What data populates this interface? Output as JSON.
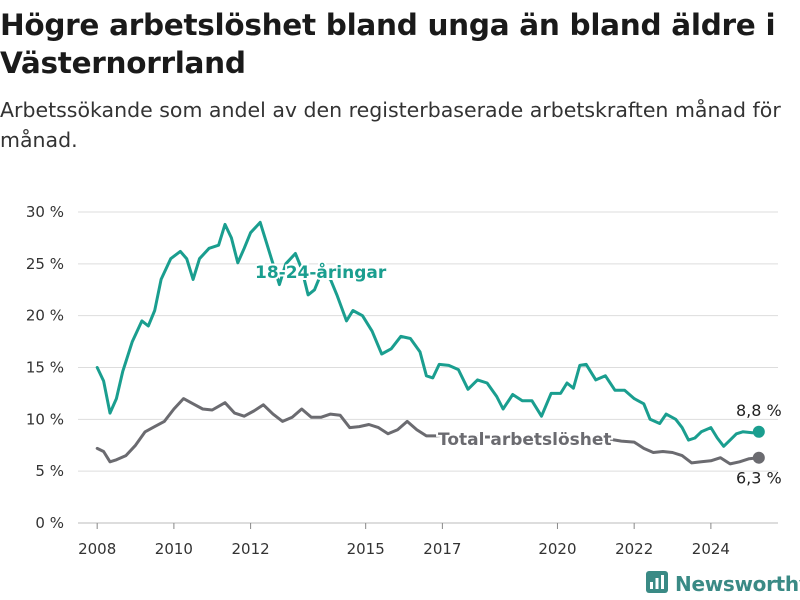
{
  "title": "Högre arbetslöshet bland unga än bland äldre i Västernorrland",
  "subtitle": "Arbetssökande som andel av den registerbaserade arbetskraften månad för månad.",
  "brand": {
    "name": "Newsworthy",
    "icon": "bar-chart-logo-icon"
  },
  "colors": {
    "youth": "#1a9e8f",
    "total": "#6b6b70",
    "grid": "#dddddd",
    "text": "#333333"
  },
  "chart_data": {
    "type": "line",
    "title": "Högre arbetslöshet bland unga än bland äldre i Västernorrland",
    "subtitle": "Arbetssökande som andel av den registerbaserade arbetskraften månad för månad.",
    "xlabel": "",
    "ylabel": "",
    "ylim": [
      0,
      30
    ],
    "xlim": [
      "2007-07",
      "2025-10"
    ],
    "yticks": [
      "0 %",
      "5 %",
      "10 %",
      "15 %",
      "20 %",
      "25 %",
      "30 %"
    ],
    "xticks": [
      "2008",
      "2010",
      "2012",
      "2015",
      "2017",
      "2020",
      "2022",
      "2024"
    ],
    "grid": true,
    "series": [
      {
        "name": "18-24-åringar",
        "color": "#1a9e8f",
        "end_label": "8,8 %",
        "points": [
          [
            "2008-01",
            15.0
          ],
          [
            "2008-03",
            13.7
          ],
          [
            "2008-05",
            10.6
          ],
          [
            "2008-07",
            12.0
          ],
          [
            "2008-09",
            14.6
          ],
          [
            "2008-12",
            17.5
          ],
          [
            "2009-03",
            19.5
          ],
          [
            "2009-05",
            19.0
          ],
          [
            "2009-07",
            20.5
          ],
          [
            "2009-09",
            23.5
          ],
          [
            "2009-12",
            25.5
          ],
          [
            "2010-03",
            26.2
          ],
          [
            "2010-05",
            25.5
          ],
          [
            "2010-07",
            23.5
          ],
          [
            "2010-09",
            25.5
          ],
          [
            "2010-12",
            26.5
          ],
          [
            "2011-03",
            26.8
          ],
          [
            "2011-05",
            28.8
          ],
          [
            "2011-07",
            27.5
          ],
          [
            "2011-09",
            25.1
          ],
          [
            "2011-11",
            26.5
          ],
          [
            "2012-01",
            28.0
          ],
          [
            "2012-04",
            29.0
          ],
          [
            "2012-06",
            27.0
          ],
          [
            "2012-08",
            25.0
          ],
          [
            "2012-10",
            23.0
          ],
          [
            "2012-12",
            25.0
          ],
          [
            "2013-03",
            26.0
          ],
          [
            "2013-05",
            24.5
          ],
          [
            "2013-07",
            22.0
          ],
          [
            "2013-09",
            22.5
          ],
          [
            "2013-11",
            24.0
          ],
          [
            "2014-02",
            23.5
          ],
          [
            "2014-04",
            22.0
          ],
          [
            "2014-07",
            19.5
          ],
          [
            "2014-09",
            20.5
          ],
          [
            "2014-12",
            20.0
          ],
          [
            "2015-03",
            18.5
          ],
          [
            "2015-06",
            16.3
          ],
          [
            "2015-09",
            16.8
          ],
          [
            "2015-12",
            18.0
          ],
          [
            "2016-03",
            17.8
          ],
          [
            "2016-06",
            16.5
          ],
          [
            "2016-08",
            14.2
          ],
          [
            "2016-10",
            14.0
          ],
          [
            "2016-12",
            15.3
          ],
          [
            "2017-03",
            15.2
          ],
          [
            "2017-06",
            14.8
          ],
          [
            "2017-09",
            12.9
          ],
          [
            "2017-12",
            13.8
          ],
          [
            "2018-03",
            13.5
          ],
          [
            "2018-06",
            12.2
          ],
          [
            "2018-08",
            11.0
          ],
          [
            "2018-11",
            12.4
          ],
          [
            "2019-02",
            11.8
          ],
          [
            "2019-05",
            11.8
          ],
          [
            "2019-08",
            10.3
          ],
          [
            "2019-11",
            12.5
          ],
          [
            "2020-02",
            12.5
          ],
          [
            "2020-04",
            13.5
          ],
          [
            "2020-06",
            13.0
          ],
          [
            "2020-08",
            15.2
          ],
          [
            "2020-10",
            15.3
          ],
          [
            "2021-01",
            13.8
          ],
          [
            "2021-04",
            14.2
          ],
          [
            "2021-07",
            12.8
          ],
          [
            "2021-10",
            12.8
          ],
          [
            "2022-01",
            12.0
          ],
          [
            "2022-04",
            11.5
          ],
          [
            "2022-06",
            10.0
          ],
          [
            "2022-09",
            9.6
          ],
          [
            "2022-11",
            10.5
          ],
          [
            "2023-02",
            10.0
          ],
          [
            "2023-04",
            9.2
          ],
          [
            "2023-06",
            8.0
          ],
          [
            "2023-08",
            8.2
          ],
          [
            "2023-10",
            8.8
          ],
          [
            "2024-01",
            9.2
          ],
          [
            "2024-03",
            8.2
          ],
          [
            "2024-05",
            7.4
          ],
          [
            "2024-07",
            8.0
          ],
          [
            "2024-09",
            8.6
          ],
          [
            "2024-11",
            8.8
          ],
          [
            "2025-02",
            8.7
          ],
          [
            "2025-04",
            8.8
          ]
        ]
      },
      {
        "name": "Total arbetslöshet",
        "color": "#6b6b70",
        "end_label": "6,3 %",
        "points": [
          [
            "2008-01",
            7.2
          ],
          [
            "2008-03",
            6.9
          ],
          [
            "2008-05",
            5.9
          ],
          [
            "2008-07",
            6.1
          ],
          [
            "2008-10",
            6.5
          ],
          [
            "2009-01",
            7.5
          ],
          [
            "2009-04",
            8.8
          ],
          [
            "2009-07",
            9.3
          ],
          [
            "2009-10",
            9.8
          ],
          [
            "2010-01",
            11.0
          ],
          [
            "2010-04",
            12.0
          ],
          [
            "2010-07",
            11.5
          ],
          [
            "2010-10",
            11.0
          ],
          [
            "2011-01",
            10.9
          ],
          [
            "2011-05",
            11.6
          ],
          [
            "2011-08",
            10.6
          ],
          [
            "2011-11",
            10.3
          ],
          [
            "2012-02",
            10.8
          ],
          [
            "2012-05",
            11.4
          ],
          [
            "2012-08",
            10.5
          ],
          [
            "2012-11",
            9.8
          ],
          [
            "2013-02",
            10.2
          ],
          [
            "2013-05",
            11.0
          ],
          [
            "2013-08",
            10.2
          ],
          [
            "2013-11",
            10.2
          ],
          [
            "2014-02",
            10.5
          ],
          [
            "2014-05",
            10.4
          ],
          [
            "2014-08",
            9.2
          ],
          [
            "2014-11",
            9.3
          ],
          [
            "2015-02",
            9.5
          ],
          [
            "2015-05",
            9.2
          ],
          [
            "2015-08",
            8.6
          ],
          [
            "2015-11",
            9.0
          ],
          [
            "2016-02",
            9.8
          ],
          [
            "2016-05",
            9.0
          ],
          [
            "2016-08",
            8.4
          ],
          [
            "2016-11",
            8.4
          ],
          [
            "2017-03",
            8.5
          ],
          [
            "2017-06",
            8.2
          ],
          [
            "2017-09",
            8.4
          ],
          [
            "2018-01",
            8.3
          ],
          [
            "2018-05",
            8.3
          ],
          [
            "2018-09",
            8.2
          ],
          [
            "2019-01",
            8.2
          ],
          [
            "2019-05",
            8.2
          ],
          [
            "2019-09",
            8.2
          ],
          [
            "2020-01",
            8.3
          ],
          [
            "2020-05",
            8.3
          ],
          [
            "2020-09",
            8.2
          ],
          [
            "2021-01",
            8.1
          ],
          [
            "2021-05",
            8.1
          ],
          [
            "2021-09",
            7.9
          ],
          [
            "2022-01",
            7.8
          ],
          [
            "2022-04",
            7.2
          ],
          [
            "2022-07",
            6.8
          ],
          [
            "2022-10",
            6.9
          ],
          [
            "2023-01",
            6.8
          ],
          [
            "2023-04",
            6.5
          ],
          [
            "2023-07",
            5.8
          ],
          [
            "2023-10",
            5.9
          ],
          [
            "2024-01",
            6.0
          ],
          [
            "2024-04",
            6.3
          ],
          [
            "2024-07",
            5.7
          ],
          [
            "2024-10",
            5.9
          ],
          [
            "2025-01",
            6.2
          ],
          [
            "2025-04",
            6.3
          ]
        ]
      }
    ],
    "series_labels": [
      "18-24-åringar",
      "Total arbetslöshet"
    ],
    "legend": "inline labels on lines"
  }
}
